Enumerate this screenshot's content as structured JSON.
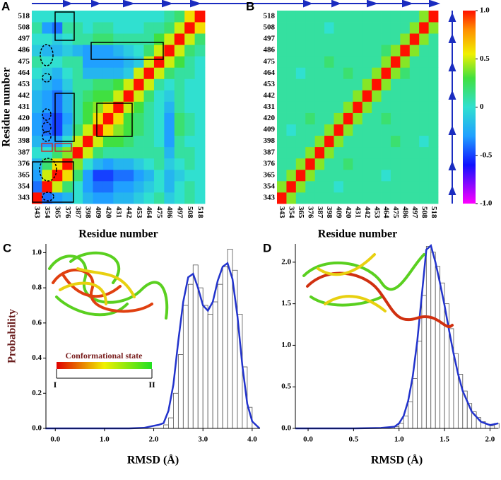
{
  "chart_data": [
    {
      "type": "heatmap",
      "panel": "A",
      "xlabel": "Residue number",
      "ylabel": "Residue number",
      "categories": [
        343,
        354,
        365,
        376,
        387,
        398,
        409,
        420,
        431,
        442,
        453,
        464,
        475,
        486,
        497,
        508,
        518
      ],
      "colorscale": [
        {
          "value": -1,
          "color": "#ff00ff"
        },
        {
          "value": -0.6,
          "color": "#1010ff"
        },
        {
          "value": -0.3,
          "color": "#20a0ff"
        },
        {
          "value": 0,
          "color": "#30e0d0"
        },
        {
          "value": 0.3,
          "color": "#40e040"
        },
        {
          "value": 0.55,
          "color": "#f0f000"
        },
        {
          "value": 0.8,
          "color": "#ff9000"
        },
        {
          "value": 1,
          "color": "#ff1000"
        }
      ],
      "z": [
        [
          1,
          -0.4,
          -0.3,
          -0.2,
          0,
          -0.2,
          -0.3,
          -0.3,
          -0.2,
          -0.2,
          -0.1,
          0,
          0.1,
          -0.1,
          0,
          0.1,
          0
        ],
        [
          -0.4,
          1,
          0.5,
          0.2,
          0,
          -0.3,
          -0.4,
          -0.4,
          -0.3,
          -0.3,
          -0.2,
          -0.1,
          0,
          -0.2,
          0,
          0.1,
          0
        ],
        [
          -0.3,
          0.5,
          1,
          0.6,
          0.2,
          -0.3,
          -0.5,
          -0.5,
          -0.4,
          -0.4,
          -0.3,
          -0.2,
          0,
          -0.2,
          -0.1,
          0,
          0
        ],
        [
          -0.2,
          0.2,
          0.6,
          1,
          0.4,
          0,
          -0.2,
          -0.3,
          -0.2,
          -0.2,
          -0.1,
          0,
          0.1,
          -0.1,
          0,
          0.1,
          0
        ],
        [
          0,
          0,
          0.2,
          0.4,
          1,
          0.5,
          0.2,
          0.1,
          0.1,
          0.1,
          0.1,
          0.1,
          0.1,
          -0.2,
          0.1,
          0.1,
          0
        ],
        [
          -0.2,
          -0.3,
          -0.3,
          0,
          0.5,
          1,
          0.5,
          0.3,
          0.3,
          0.2,
          0.1,
          0.1,
          0,
          -0.3,
          0.1,
          0,
          0
        ],
        [
          -0.3,
          -0.4,
          -0.5,
          -0.2,
          0.2,
          0.5,
          1,
          0.6,
          0.4,
          0.3,
          0.2,
          0.1,
          0,
          -0.3,
          0.2,
          0.1,
          0
        ],
        [
          -0.3,
          -0.4,
          -0.5,
          -0.3,
          0.1,
          0.3,
          0.6,
          1,
          0.6,
          0.3,
          0.2,
          0.1,
          0,
          -0.3,
          0.2,
          0.1,
          0
        ],
        [
          -0.2,
          -0.3,
          -0.4,
          -0.2,
          0.1,
          0.3,
          0.4,
          0.6,
          1,
          0.5,
          0.3,
          0.1,
          0,
          -0.2,
          0.1,
          0,
          0
        ],
        [
          -0.2,
          -0.3,
          -0.4,
          -0.2,
          0.1,
          0.2,
          0.3,
          0.3,
          0.5,
          1,
          0.5,
          0.2,
          0,
          -0.1,
          0.1,
          0,
          0
        ],
        [
          -0.1,
          -0.2,
          -0.3,
          -0.1,
          0.1,
          0.1,
          0.2,
          0.2,
          0.3,
          0.5,
          1,
          0.5,
          0.1,
          0,
          0.1,
          0,
          0
        ],
        [
          0,
          -0.1,
          -0.2,
          0,
          0.1,
          -0.2,
          -0.2,
          -0.2,
          -0.2,
          -0.1,
          0.5,
          1,
          0.5,
          0.2,
          0.1,
          0.1,
          0
        ],
        [
          0.1,
          0,
          0,
          0.1,
          0.1,
          -0.3,
          -0.3,
          -0.3,
          -0.3,
          -0.2,
          -0.1,
          0.5,
          1,
          0.5,
          0.3,
          0.1,
          0
        ],
        [
          -0.1,
          -0.2,
          -0.2,
          -0.1,
          -0.2,
          -0.3,
          -0.3,
          -0.3,
          -0.2,
          -0.1,
          0,
          0.2,
          0.5,
          1,
          0.5,
          0.2,
          0.1
        ],
        [
          0,
          0,
          -0.1,
          0,
          0.1,
          0.1,
          0.2,
          0.2,
          0.1,
          0.1,
          0.1,
          0.1,
          0.3,
          0.5,
          1,
          0.5,
          0.2
        ],
        [
          0.1,
          -0.3,
          -0.4,
          0.1,
          0.1,
          0,
          0.1,
          0.1,
          0,
          0,
          0,
          0.1,
          0.1,
          0.2,
          0.5,
          1,
          0.6
        ],
        [
          0,
          0,
          0,
          0,
          0,
          0,
          0,
          0,
          0,
          0,
          0,
          0,
          0,
          0.1,
          0.2,
          0.6,
          1
        ]
      ]
    },
    {
      "type": "heatmap",
      "panel": "B",
      "xlabel": "Residue number",
      "categories": [
        343,
        354,
        365,
        376,
        387,
        398,
        409,
        420,
        431,
        442,
        453,
        464,
        475,
        486,
        497,
        508,
        518
      ],
      "colorscale": [
        {
          "value": -1,
          "color": "#ff00ff"
        },
        {
          "value": -0.6,
          "color": "#1010ff"
        },
        {
          "value": -0.3,
          "color": "#20a0ff"
        },
        {
          "value": 0,
          "color": "#30e0d0"
        },
        {
          "value": 0.3,
          "color": "#40e040"
        },
        {
          "value": 0.55,
          "color": "#f0f000"
        },
        {
          "value": 0.8,
          "color": "#ff9000"
        },
        {
          "value": 1,
          "color": "#ff1000"
        }
      ],
      "colorbar": true,
      "zlim": [
        -1,
        1
      ],
      "zticks": [
        {
          "value": 1,
          "label": "1.0"
        },
        0.5,
        0,
        -0.5,
        {
          "value": -1,
          "label": "-1.0"
        }
      ],
      "z": [
        [
          1,
          0.4,
          0.1,
          0.1,
          0.1,
          0.1,
          0.1,
          0.1,
          0.1,
          0.1,
          0.1,
          0.1,
          0.1,
          0.1,
          0.1,
          0.1,
          0.1
        ],
        [
          0.4,
          1,
          0.4,
          0.1,
          0.1,
          0.1,
          0,
          0.1,
          0.1,
          0.1,
          0.1,
          0.1,
          0.1,
          0.1,
          0.1,
          0.1,
          0.1
        ],
        [
          0.1,
          0.4,
          1,
          0.4,
          0.1,
          0.1,
          0.1,
          0.1,
          0.1,
          0.1,
          0.1,
          0,
          0.1,
          0.1,
          0.1,
          0.1,
          0.1
        ],
        [
          0.1,
          0.1,
          0.4,
          1,
          0.4,
          0.1,
          0.1,
          0.2,
          0.1,
          0.1,
          0.1,
          0.1,
          0.1,
          0.1,
          0.1,
          0.1,
          0.1
        ],
        [
          0.1,
          0.1,
          0.1,
          0.4,
          1,
          0.4,
          0.1,
          0.1,
          0.1,
          0.1,
          0.1,
          0.1,
          0.1,
          0.1,
          0.1,
          0.1,
          0.1
        ],
        [
          0.1,
          0.1,
          0.1,
          0.1,
          0.4,
          1,
          0.4,
          0.1,
          0.1,
          0.1,
          0.1,
          0.1,
          0.2,
          0.1,
          0.1,
          0,
          0.1
        ],
        [
          0.1,
          0,
          0.1,
          0.1,
          0.1,
          0.4,
          1,
          0.4,
          0.1,
          0.1,
          0.1,
          0.1,
          0.1,
          0.1,
          0.1,
          0.1,
          0.1
        ],
        [
          0.1,
          0.1,
          0.1,
          0.2,
          0.1,
          0.1,
          0.4,
          1,
          0.4,
          0.1,
          0.1,
          0.2,
          0.1,
          0.1,
          0.1,
          0.1,
          0.1
        ],
        [
          0.1,
          0.1,
          0.1,
          0.1,
          0.1,
          0.1,
          0.1,
          0.4,
          1,
          0.4,
          0.1,
          0.1,
          0.1,
          0.1,
          0.1,
          0.1,
          0.1
        ],
        [
          0.1,
          0.1,
          0.1,
          0.1,
          0.1,
          0.1,
          0.1,
          0.1,
          0.4,
          1,
          0.4,
          0.1,
          0.1,
          0.1,
          0.1,
          0.1,
          0.1
        ],
        [
          0.1,
          0.1,
          0.1,
          0.1,
          0.1,
          0.1,
          0.1,
          0.1,
          0.1,
          0.4,
          1,
          0.4,
          0.1,
          0.1,
          0.1,
          0.1,
          0.1
        ],
        [
          0.1,
          0.1,
          0,
          0.1,
          0.1,
          0.1,
          0.1,
          0.2,
          0.1,
          0.1,
          0.4,
          1,
          0.4,
          0.2,
          0.1,
          0.1,
          0.1
        ],
        [
          0.1,
          0.1,
          0.1,
          0.1,
          0.1,
          0.2,
          0.1,
          0.1,
          0.1,
          0.1,
          0.1,
          0.4,
          1,
          0.4,
          0.1,
          0.1,
          0.1
        ],
        [
          0.1,
          0.1,
          0.1,
          0.1,
          0.1,
          0.1,
          0.1,
          0.1,
          0.1,
          0.1,
          0.1,
          0.2,
          0.4,
          1,
          0.4,
          0.1,
          0.1
        ],
        [
          0.1,
          0.1,
          0.1,
          0.1,
          0.1,
          0.1,
          0.1,
          0.1,
          0.1,
          0.1,
          0.1,
          0.1,
          0.1,
          0.4,
          1,
          0.4,
          0.1
        ],
        [
          0.1,
          0.1,
          0.1,
          0.1,
          0.1,
          0,
          0.1,
          0.1,
          0.1,
          0.1,
          0.1,
          0.1,
          0.1,
          0.1,
          0.4,
          1,
          0.4
        ],
        [
          0.1,
          0.1,
          0.1,
          0.1,
          0.1,
          0.1,
          0.1,
          0.1,
          0.1,
          0.1,
          0.1,
          0.1,
          0.1,
          0.1,
          0.1,
          0.4,
          1
        ]
      ]
    },
    {
      "type": "histogram",
      "panel": "C",
      "xlabel": "RMSD (Å)",
      "ylabel": "Probability",
      "bins": [
        2.2,
        2.3,
        2.4,
        2.5,
        2.6,
        2.7,
        2.8,
        2.9,
        3.0,
        3.1,
        3.2,
        3.3,
        3.4,
        3.5,
        3.6,
        3.7,
        3.8,
        3.9,
        4.0
      ],
      "values": [
        0.02,
        0.06,
        0.2,
        0.42,
        0.7,
        0.82,
        0.93,
        0.8,
        0.7,
        0.65,
        0.72,
        0.82,
        0.92,
        1.02,
        0.9,
        0.65,
        0.35,
        0.12
      ],
      "color": "#ffffff",
      "curve": {
        "color": "#2233cc",
        "x": [
          -0.2,
          0.5,
          1.0,
          1.5,
          1.8,
          2.0,
          2.1,
          2.2,
          2.3,
          2.4,
          2.5,
          2.6,
          2.7,
          2.8,
          2.9,
          3.0,
          3.1,
          3.2,
          3.3,
          3.4,
          3.5,
          3.6,
          3.7,
          3.8,
          3.9,
          4.0,
          4.15
        ],
        "y": [
          0,
          0,
          0,
          0,
          0.003,
          0.015,
          0.02,
          0.03,
          0.1,
          0.25,
          0.5,
          0.72,
          0.86,
          0.88,
          0.8,
          0.7,
          0.67,
          0.72,
          0.84,
          0.92,
          0.94,
          0.85,
          0.64,
          0.36,
          0.14,
          0.04,
          0
        ]
      },
      "xlim": [
        -0.19,
        4.16
      ],
      "xticks": [
        {
          "value": 0,
          "label": "0.0"
        },
        {
          "value": 1,
          "label": "1.0"
        },
        {
          "value": 2,
          "label": "2.0"
        },
        {
          "value": 3,
          "label": "3.0"
        },
        {
          "value": 4,
          "label": "4.0"
        }
      ],
      "ylim": [
        0,
        1.05
      ],
      "yticks": [
        {
          "value": 0,
          "label": "0.0"
        },
        0.2,
        0.4,
        0.6,
        0.8,
        {
          "value": 1,
          "label": "1.0"
        }
      ],
      "inset": {
        "title": "Conformational state",
        "start": "I",
        "end": "II"
      }
    },
    {
      "type": "histogram",
      "panel": "D",
      "xlabel": "RMSD (Å)",
      "bins": [
        0.95,
        1.0,
        1.05,
        1.1,
        1.15,
        1.2,
        1.25,
        1.3,
        1.35,
        1.4,
        1.45,
        1.5,
        1.55,
        1.6,
        1.65,
        1.7,
        1.75,
        1.8,
        1.85,
        1.9,
        1.95,
        2.0,
        2.05,
        2.1
      ],
      "values": [
        0.02,
        0.06,
        0.15,
        0.32,
        0.6,
        1.05,
        1.6,
        2.19,
        2.12,
        1.95,
        1.75,
        1.5,
        1.2,
        0.9,
        0.65,
        0.45,
        0.3,
        0.2,
        0.13,
        0.08,
        0.05,
        0.03,
        0.06
      ],
      "color": "#ffffff",
      "curve": {
        "color": "#2233cc",
        "x": [
          -0.14,
          0.5,
          0.8,
          0.95,
          1.0,
          1.05,
          1.1,
          1.15,
          1.2,
          1.25,
          1.3,
          1.35,
          1.4,
          1.45,
          1.5,
          1.55,
          1.6,
          1.65,
          1.7,
          1.8,
          1.9,
          2.0,
          2.09
        ],
        "y": [
          0,
          0,
          0.005,
          0.02,
          0.06,
          0.15,
          0.33,
          0.62,
          1.05,
          1.6,
          2.15,
          2.2,
          2.0,
          1.75,
          1.48,
          1.18,
          0.9,
          0.65,
          0.45,
          0.2,
          0.08,
          0.04,
          0.06
        ]
      },
      "xlim": [
        -0.14,
        2.09
      ],
      "xticks": [
        {
          "value": 0,
          "label": "0.0"
        },
        0.5,
        {
          "value": 1,
          "label": "1.0"
        },
        1.5,
        {
          "value": 2,
          "label": "2.0"
        }
      ],
      "ylim": [
        0,
        2.22
      ],
      "yticks": [
        {
          "value": 0,
          "label": "0.0"
        },
        0.5,
        {
          "value": 1,
          "label": "1.0"
        },
        1.5,
        {
          "value": 2,
          "label": "2.0"
        }
      ]
    }
  ]
}
